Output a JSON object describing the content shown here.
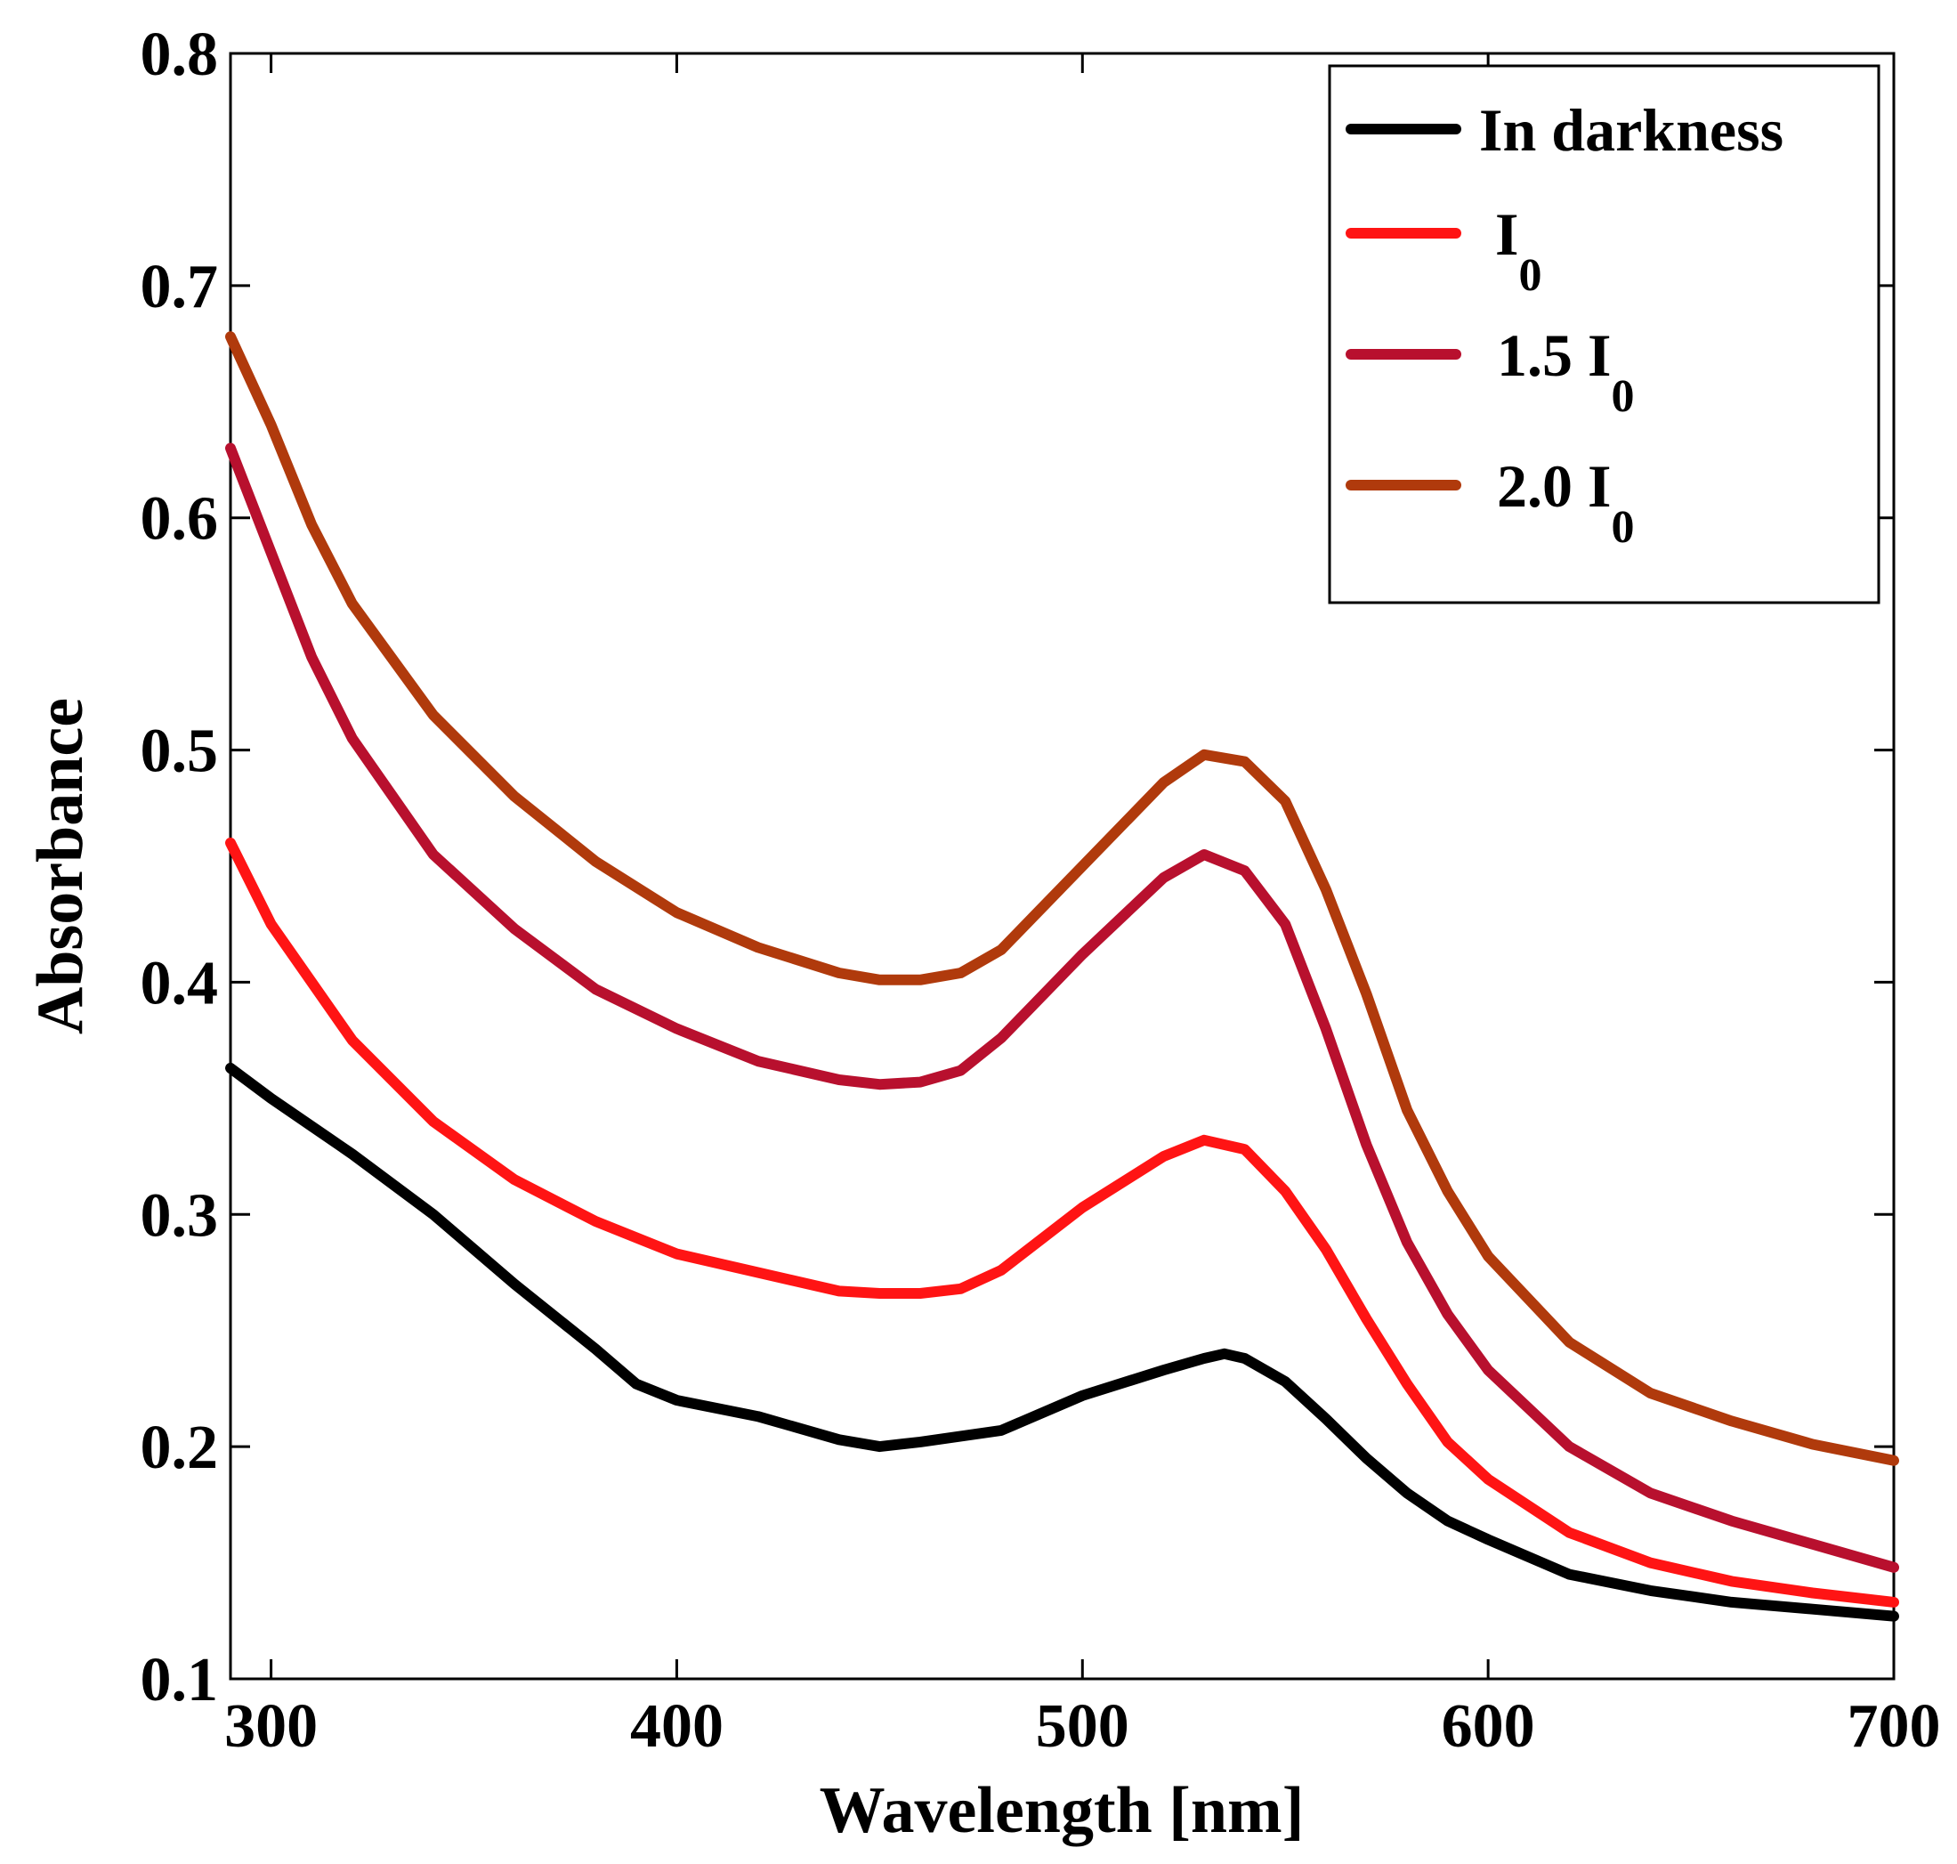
{
  "chart_data": {
    "type": "line",
    "title": "",
    "xlabel": "Wavelength [nm]",
    "ylabel": "Absorbance",
    "xlim": [
      290,
      700
    ],
    "ylim": [
      0.1,
      0.8
    ],
    "xticks": [
      300,
      400,
      500,
      600,
      700
    ],
    "xtick_labels": [
      "300",
      "400",
      "500",
      "600",
      "700"
    ],
    "yticks": [
      0.1,
      0.2,
      0.3,
      0.4,
      0.5,
      0.6,
      0.7,
      0.8
    ],
    "ytick_labels": [
      "0.1",
      "0.2",
      "0.3",
      "0.4",
      "0.5",
      "0.6",
      "0.7",
      "0.8"
    ],
    "grid": false,
    "legend_position": "top-right",
    "series": [
      {
        "name": "In darkness",
        "label_main": "In darkness",
        "label_sub": "",
        "color": "#000000",
        "x": [
          290,
          300,
          320,
          340,
          360,
          380,
          390,
          400,
          420,
          440,
          450,
          460,
          480,
          500,
          520,
          530,
          535,
          540,
          550,
          560,
          570,
          580,
          590,
          600,
          620,
          640,
          660,
          680,
          700
        ],
        "values": [
          0.363,
          0.35,
          0.326,
          0.3,
          0.27,
          0.242,
          0.227,
          0.22,
          0.213,
          0.203,
          0.2,
          0.202,
          0.207,
          0.222,
          0.233,
          0.238,
          0.24,
          0.238,
          0.228,
          0.212,
          0.195,
          0.18,
          0.168,
          0.16,
          0.145,
          0.138,
          0.133,
          0.13,
          0.127
        ]
      },
      {
        "name": "I0",
        "label_main": "I",
        "label_sub": "0",
        "color": "#ff1414",
        "x": [
          290,
          300,
          320,
          340,
          360,
          380,
          400,
          420,
          440,
          450,
          460,
          470,
          480,
          500,
          520,
          530,
          540,
          550,
          560,
          570,
          580,
          590,
          600,
          620,
          640,
          660,
          680,
          700
        ],
        "values": [
          0.46,
          0.425,
          0.375,
          0.34,
          0.315,
          0.297,
          0.283,
          0.275,
          0.267,
          0.266,
          0.266,
          0.268,
          0.276,
          0.303,
          0.325,
          0.332,
          0.328,
          0.31,
          0.285,
          0.255,
          0.227,
          0.202,
          0.186,
          0.163,
          0.15,
          0.142,
          0.137,
          0.133
        ]
      },
      {
        "name": "1.5 I0",
        "label_main": "1.5 I",
        "label_sub": "0",
        "color": "#b8102e",
        "x": [
          290,
          300,
          310,
          320,
          340,
          360,
          380,
          400,
          420,
          440,
          450,
          460,
          470,
          480,
          500,
          520,
          530,
          540,
          550,
          560,
          570,
          580,
          590,
          600,
          620,
          640,
          660,
          680,
          700
        ],
        "values": [
          0.63,
          0.585,
          0.54,
          0.505,
          0.455,
          0.423,
          0.397,
          0.38,
          0.366,
          0.358,
          0.356,
          0.357,
          0.362,
          0.376,
          0.412,
          0.445,
          0.455,
          0.448,
          0.425,
          0.38,
          0.33,
          0.288,
          0.257,
          0.233,
          0.2,
          0.18,
          0.168,
          0.158,
          0.148
        ]
      },
      {
        "name": "2.0 I0",
        "label_main": "2.0 I",
        "label_sub": "0",
        "color": "#b03a0c",
        "x": [
          290,
          300,
          310,
          320,
          340,
          360,
          380,
          400,
          420,
          440,
          450,
          460,
          470,
          480,
          500,
          520,
          530,
          540,
          550,
          560,
          570,
          580,
          590,
          600,
          620,
          640,
          660,
          680,
          700
        ],
        "values": [
          0.678,
          0.64,
          0.597,
          0.563,
          0.515,
          0.48,
          0.452,
          0.43,
          0.415,
          0.404,
          0.401,
          0.401,
          0.404,
          0.414,
          0.45,
          0.486,
          0.498,
          0.495,
          0.478,
          0.44,
          0.395,
          0.345,
          0.31,
          0.282,
          0.245,
          0.223,
          0.211,
          0.201,
          0.194
        ]
      }
    ]
  }
}
